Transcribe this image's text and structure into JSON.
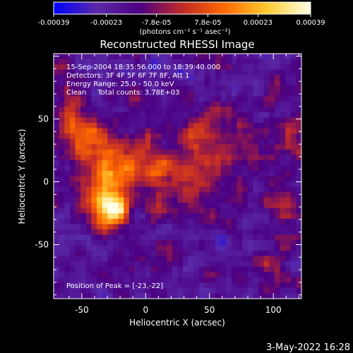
{
  "chart_data": {
    "type": "heatmap",
    "title": "Reconstructed RHESSI Image",
    "xlabel": "Heliocentric X (arcsec)",
    "ylabel": "Heliocentric Y (arcsec)",
    "xlim": [
      -72,
      122
    ],
    "ylim": [
      -93,
      102
    ],
    "x_ticks": [
      -50,
      0,
      50,
      100
    ],
    "y_ticks": [
      -50,
      0,
      50
    ],
    "colorbar": {
      "range": [
        -0.00039,
        0.00039
      ],
      "tick_values": [
        -0.00039,
        -0.00023,
        -7.8e-05,
        7.8e-05,
        0.00023,
        0.00039
      ],
      "tick_labels": [
        "-0.00039",
        "-0.00023",
        "-7.8e-05",
        "7.8e-05",
        "0.00023",
        "0.00039"
      ],
      "unit_label": "(photons cm⁻² s⁻¹ asec⁻²)",
      "colormap": [
        "#0000ff",
        "#5a2aa8",
        "#4b0082",
        "#c02a28",
        "#ff6a00",
        "#ffcc33",
        "#ffffe8"
      ]
    },
    "annotations": [
      "15-Sep-2004 18:35:56.000 to 18:39:40.000",
      "Detectors: 3F 4F 5F 6F 7F 8F, Att 1",
      "Energy Range: 25.0 - 50.0 keV",
      "Clean     Total counts: 3.78E+03"
    ],
    "peak_label": "Position of Peak = [-23,-22]",
    "peak": [
      -23,
      -22
    ],
    "sources": [
      {
        "x": -23,
        "y": -22,
        "amp": 0.00039,
        "sx": 8,
        "sy": 10
      },
      {
        "x": -35,
        "y": -10,
        "amp": 0.00031,
        "sx": 10,
        "sy": 18
      },
      {
        "x": -15,
        "y": 10,
        "amp": 0.00024,
        "sx": 18,
        "sy": 14
      },
      {
        "x": -45,
        "y": 35,
        "amp": 0.00022,
        "sx": 14,
        "sy": 14
      },
      {
        "x": -60,
        "y": 50,
        "amp": 0.00014,
        "sx": 10,
        "sy": 14
      },
      {
        "x": 30,
        "y": 5,
        "amp": 0.0002,
        "sx": 22,
        "sy": 14
      },
      {
        "x": 40,
        "y": 40,
        "amp": 0.00018,
        "sx": 14,
        "sy": 12
      },
      {
        "x": 70,
        "y": 30,
        "amp": 0.00012,
        "sx": 12,
        "sy": 12
      },
      {
        "x": 55,
        "y": -30,
        "amp": 0.00012,
        "sx": 10,
        "sy": 8
      },
      {
        "x": 105,
        "y": -15,
        "amp": 0.00016,
        "sx": 9,
        "sy": 12
      },
      {
        "x": 112,
        "y": 35,
        "amp": 0.00013,
        "sx": 8,
        "sy": 12
      },
      {
        "x": 100,
        "y": -70,
        "amp": 0.00014,
        "sx": 8,
        "sy": 10
      },
      {
        "x": -10,
        "y": 60,
        "amp": 9e-05,
        "sx": 14,
        "sy": 10
      }
    ],
    "background_level": -0.00018,
    "noise_amplitude": 0.0001
  },
  "footer": {
    "timestamp": "3-May-2022 16:28"
  }
}
